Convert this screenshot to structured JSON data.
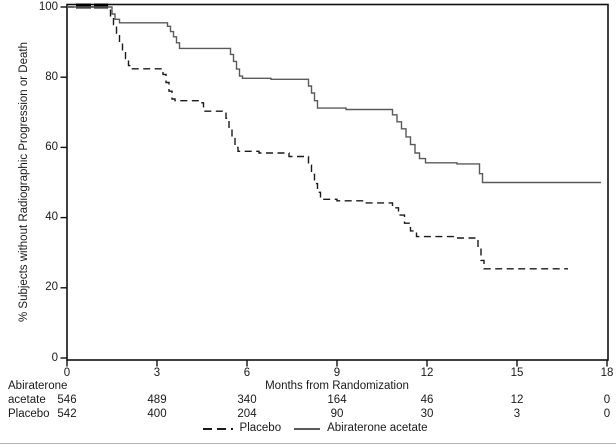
{
  "page": {
    "background": "#ffffff"
  },
  "chart_data": {
    "type": "line",
    "subtype": "kaplan-meier-step",
    "title": "",
    "xlabel": "Months from Randomization",
    "ylabel": "% Subjects without Radiographic Progression or Death",
    "xlim": [
      0,
      18
    ],
    "ylim": [
      0,
      100
    ],
    "x_ticks": [
      0,
      3,
      6,
      9,
      12,
      15,
      18
    ],
    "y_ticks": [
      100,
      80,
      60,
      40,
      20,
      0
    ],
    "grid": false,
    "legend_position": "bottom-center",
    "frame_color": "#111111",
    "series": [
      {
        "name": "Placebo",
        "line_style": "dashed",
        "color": "#1a1a1a",
        "points": [
          [
            0,
            100
          ],
          [
            1.45,
            97.5
          ],
          [
            1.55,
            95
          ],
          [
            1.65,
            92.5
          ],
          [
            1.75,
            90
          ],
          [
            1.85,
            87.5
          ],
          [
            1.95,
            85.3
          ],
          [
            2.05,
            83.3
          ],
          [
            2.15,
            82.4
          ],
          [
            3.2,
            80.8
          ],
          [
            3.3,
            78.5
          ],
          [
            3.4,
            76
          ],
          [
            3.5,
            73.8
          ],
          [
            3.6,
            73.3
          ],
          [
            4.45,
            72.7
          ],
          [
            4.55,
            70.3
          ],
          [
            5.3,
            68.3
          ],
          [
            5.4,
            65.5
          ],
          [
            5.5,
            62.5
          ],
          [
            5.6,
            60
          ],
          [
            5.7,
            58.9
          ],
          [
            6.4,
            58.4
          ],
          [
            7.4,
            57.4
          ],
          [
            8.05,
            55
          ],
          [
            8.15,
            52.3
          ],
          [
            8.25,
            49.7
          ],
          [
            8.35,
            47.2
          ],
          [
            8.45,
            45.2
          ],
          [
            9.0,
            44.8
          ],
          [
            9.9,
            44.2
          ],
          [
            10.85,
            42.8
          ],
          [
            11.05,
            40.7
          ],
          [
            11.25,
            38.4
          ],
          [
            11.45,
            36.2
          ],
          [
            11.65,
            34.6
          ],
          [
            12.9,
            34.2
          ],
          [
            13.7,
            31
          ],
          [
            13.8,
            27.8
          ],
          [
            13.9,
            25.4
          ],
          [
            16.7,
            25.4
          ]
        ]
      },
      {
        "name": "Abiraterone acetate",
        "line_style": "solid",
        "color": "#5a5a5a",
        "points": [
          [
            0,
            100
          ],
          [
            1.5,
            98
          ],
          [
            1.6,
            96.5
          ],
          [
            1.75,
            95.5
          ],
          [
            3.35,
            94.5
          ],
          [
            3.45,
            93
          ],
          [
            3.55,
            91.5
          ],
          [
            3.65,
            89.8
          ],
          [
            3.75,
            88.2
          ],
          [
            5.45,
            86.5
          ],
          [
            5.55,
            84.5
          ],
          [
            5.65,
            82.3
          ],
          [
            5.75,
            80.3
          ],
          [
            5.85,
            79.7
          ],
          [
            6.8,
            79.4
          ],
          [
            8.05,
            77.5
          ],
          [
            8.15,
            75.5
          ],
          [
            8.25,
            73.3
          ],
          [
            8.35,
            71.2
          ],
          [
            9.3,
            70.8
          ],
          [
            10.85,
            69.3
          ],
          [
            11.0,
            67.3
          ],
          [
            11.15,
            65.3
          ],
          [
            11.3,
            63
          ],
          [
            11.45,
            60.8
          ],
          [
            11.6,
            58.4
          ],
          [
            11.75,
            56.8
          ],
          [
            11.95,
            55.6
          ],
          [
            13.0,
            55.3
          ],
          [
            13.75,
            52.5
          ],
          [
            13.85,
            50
          ],
          [
            17.8,
            50
          ]
        ]
      }
    ],
    "censor_marks_at_100_months": [
      [
        0.3,
        0.8
      ],
      [
        0.9,
        1.37
      ]
    ],
    "at_risk_table": {
      "rows": [
        {
          "label": "Abiraterone acetate",
          "label_lines": [
            "Abiraterone",
            "acetate"
          ],
          "counts": [
            "546",
            "489",
            "340",
            "164",
            "46",
            "12",
            "0"
          ]
        },
        {
          "label": "Placebo",
          "label_lines": [
            "Placebo"
          ],
          "counts": [
            "542",
            "400",
            "204",
            "90",
            "30",
            "3",
            "0"
          ]
        }
      ]
    },
    "legend": [
      {
        "label": "Placebo",
        "style": "dashed"
      },
      {
        "label": "Abiraterone acetate",
        "style": "solid"
      }
    ]
  }
}
